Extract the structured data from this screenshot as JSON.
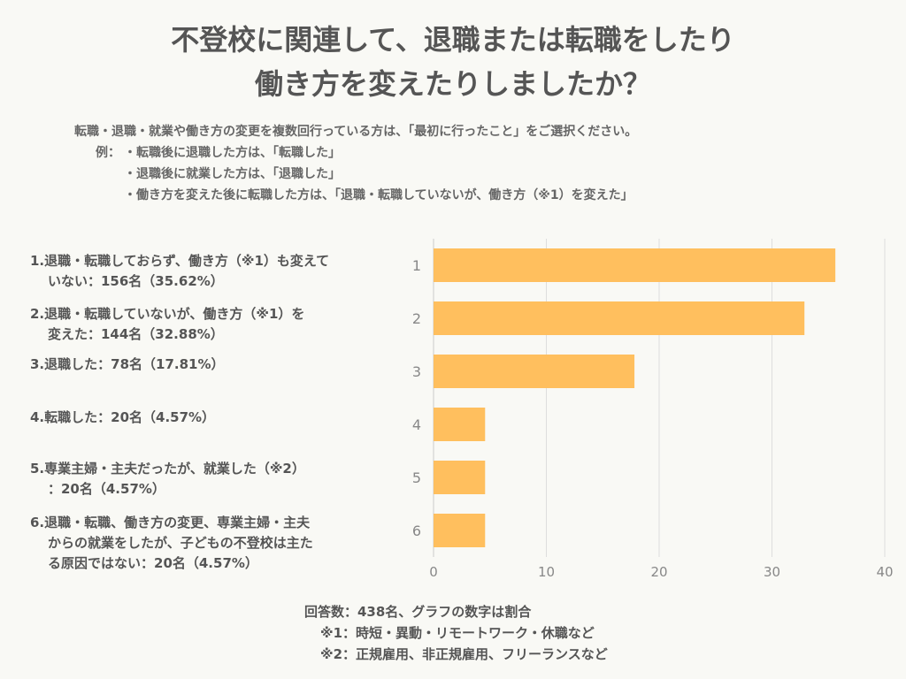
{
  "title": {
    "line1": "不登校に関連して、退職または転職をしたり",
    "line2": "働き方を変えたりしましたか？"
  },
  "subtitle": {
    "line1": "転職・退職・就業や働き方の変更を複数回行っている方は、「最初に行ったこと」をご選択ください。",
    "example_label": "例：",
    "example1": "・転職後に退職した方は、「転職した」",
    "example2": "・退職後に就業した方は、「退職した」",
    "example3": "・働き方を変えた後に転職した方は、「退職・転職していないが、働き方（※1）を変えた」"
  },
  "labels": [
    {
      "line1": "1.退職・転職しておらず、働き方（※1）も変えて",
      "line2": "いない：156名（35.62%）",
      "line3": ""
    },
    {
      "line1": "2.退職・転職していないが、働き方（※1）を",
      "line2": "変えた：144名（32.88%）",
      "line3": ""
    },
    {
      "line1": "3.退職した：78名（17.81%）",
      "line2": "",
      "line3": ""
    },
    {
      "line1": "4.転職した：20名（4.57%）",
      "line2": "",
      "line3": ""
    },
    {
      "line1": "5.専業主婦・主夫だったが、就業した（※2）",
      "line2": "：20名（4.57%）",
      "line3": ""
    },
    {
      "line1": "6.退職・転職、働き方の変更、専業主婦・主夫",
      "line2": "からの就業をしたが、子どもの不登校は主た",
      "line3": "る原因ではない：20名（4.57%）"
    }
  ],
  "footer": {
    "line1": "回答数：438名、グラフの数字は割合",
    "note1": "※1：時短・異動・リモートワーク・休職など",
    "note2": "※2：正規雇用、非正規雇用、フリーランスなど"
  },
  "colors": {
    "bar": "#ffbf5e",
    "grid": "#dddddd",
    "axis_text": "#888888",
    "background": "#f9f9f5"
  },
  "chart_data": {
    "type": "bar",
    "orientation": "horizontal",
    "categories": [
      "1",
      "2",
      "3",
      "4",
      "5",
      "6"
    ],
    "values": [
      35.62,
      32.88,
      17.81,
      4.57,
      4.57,
      4.57
    ],
    "xlim": [
      0,
      40
    ],
    "xticks": [
      "0",
      "10",
      "20",
      "30",
      "40"
    ],
    "title": "不登校に関連して、退職または転職をしたり働き方を変えたりしましたか？",
    "xlabel": "",
    "ylabel": "",
    "grid": true
  }
}
